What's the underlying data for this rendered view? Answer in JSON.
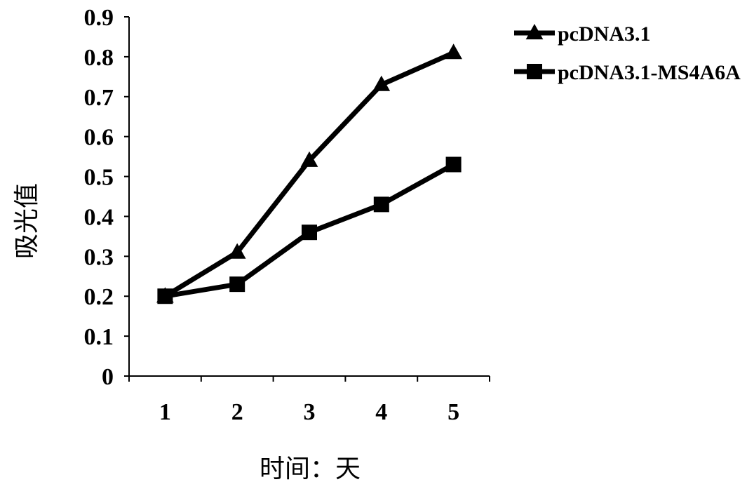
{
  "chart_data": {
    "type": "line",
    "title": "",
    "xlabel": "时间：天",
    "ylabel": "吸光值",
    "categories": [
      "1",
      "2",
      "3",
      "4",
      "5"
    ],
    "x": [
      1,
      2,
      3,
      4,
      5
    ],
    "ylim": [
      0,
      0.9
    ],
    "yticks": [
      0,
      0.1,
      0.2,
      0.3,
      0.4,
      0.5,
      0.6,
      0.7,
      0.8,
      0.9
    ],
    "ytick_labels": [
      "0",
      "0.1",
      "0.2",
      "0.3",
      "0.4",
      "0.5",
      "0.6",
      "0.7",
      "0.8",
      "0.9"
    ],
    "grid": false,
    "legend_position": "top-right",
    "series": [
      {
        "name": "pcDNA3.1",
        "marker": "triangle",
        "color": "#000000",
        "values": [
          0.2,
          0.31,
          0.54,
          0.73,
          0.81
        ]
      },
      {
        "name": "pcDNA3.1-MS4A6A",
        "marker": "square",
        "color": "#000000",
        "values": [
          0.2,
          0.23,
          0.36,
          0.43,
          0.53
        ]
      }
    ]
  }
}
